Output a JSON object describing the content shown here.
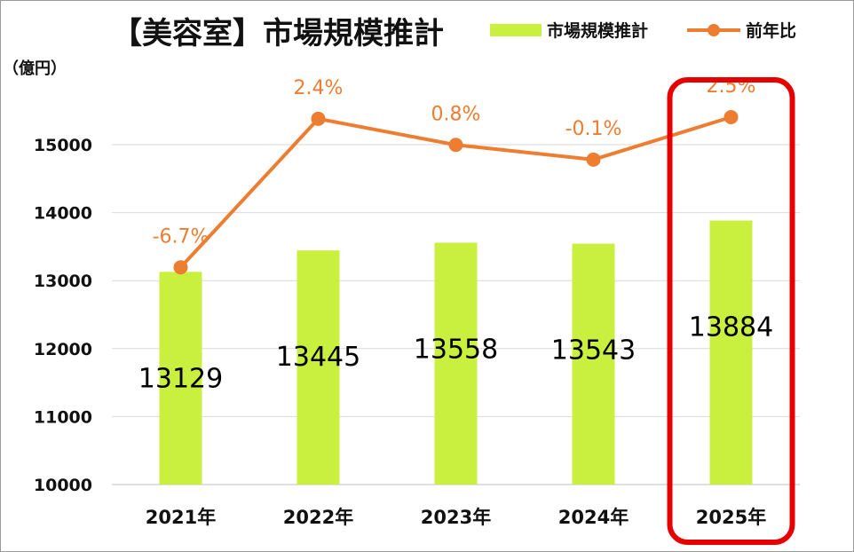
{
  "chart_data": {
    "type": "bar",
    "title": "【美容室】市場規模推計",
    "y_unit_label": "（億円）",
    "categories": [
      "2021年",
      "2022年",
      "2023年",
      "2024年",
      "2025年"
    ],
    "series": [
      {
        "name": "市場規模推計",
        "type": "bar",
        "color": "#C9F03F",
        "values": [
          13129,
          13445,
          13558,
          13543,
          13884
        ]
      },
      {
        "name": "前年比",
        "type": "line",
        "color": "#ED7D31",
        "values": [
          -6.7,
          2.4,
          0.8,
          -0.1,
          2.5
        ],
        "labels": [
          "-6.7%",
          "2.4%",
          "0.8%",
          "-0.1%",
          "2.5%"
        ]
      }
    ],
    "ylim": [
      10000,
      15000
    ],
    "yticks": [
      "10000",
      "11000",
      "12000",
      "13000",
      "14000",
      "15000"
    ],
    "line_ylim": [
      -20,
      5
    ],
    "grid": true,
    "legend": "top-right",
    "highlight": {
      "category": "2025年",
      "color": "#E60000"
    }
  }
}
